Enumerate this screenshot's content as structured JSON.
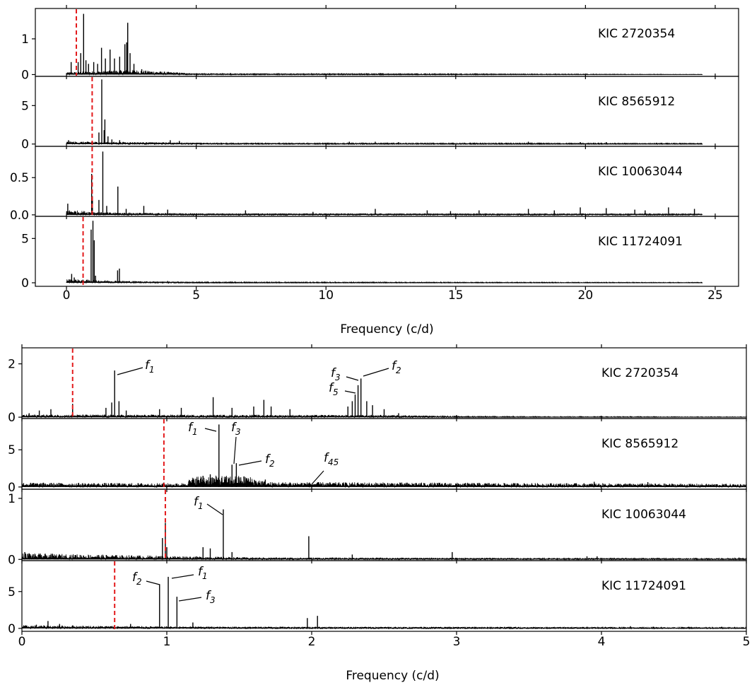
{
  "chart_data": [
    {
      "type": "line",
      "xlabel": "Frequency (c/d)",
      "xlim": [
        -1.2,
        25.9
      ],
      "x_ticks": [
        0,
        5,
        10,
        15,
        20,
        25
      ],
      "panels": [
        {
          "star": "KIC 2720354",
          "ylim": [
            -0.05,
            1.85
          ],
          "y_ticks": [
            0,
            1
          ],
          "red_line_x": 0.38,
          "peaks": [
            [
              0.18,
              0.35
            ],
            [
              0.45,
              0.35
            ],
            [
              0.55,
              0.6
            ],
            [
              0.66,
              1.7
            ],
            [
              0.75,
              0.4
            ],
            [
              0.85,
              0.3
            ],
            [
              1.05,
              0.35
            ],
            [
              1.2,
              0.3
            ],
            [
              1.35,
              0.75
            ],
            [
              1.5,
              0.45
            ],
            [
              1.68,
              0.7
            ],
            [
              1.85,
              0.45
            ],
            [
              2.05,
              0.5
            ],
            [
              2.25,
              0.85
            ],
            [
              2.32,
              0.9
            ],
            [
              2.36,
              1.45
            ],
            [
              2.45,
              0.6
            ],
            [
              2.6,
              0.3
            ],
            [
              2.9,
              0.15
            ]
          ],
          "noise_profile": [
            [
              0,
              0.04
            ],
            [
              2.5,
              0.08
            ],
            [
              5,
              0.02
            ],
            [
              24.5,
              0.004
            ]
          ]
        },
        {
          "star": "KIC 8565912",
          "ylim": [
            -0.3,
            8.8
          ],
          "y_ticks": [
            0,
            5
          ],
          "red_line_x": 0.99,
          "peaks": [
            [
              0.08,
              0.5
            ],
            [
              1.25,
              1.5
            ],
            [
              1.36,
              8.4
            ],
            [
              1.45,
              1.8
            ],
            [
              1.48,
              3.2
            ],
            [
              1.6,
              1.0
            ],
            [
              1.75,
              0.6
            ],
            [
              2.05,
              0.5
            ],
            [
              4.0,
              0.5
            ],
            [
              4.35,
              0.4
            ],
            [
              10.9,
              0.3
            ],
            [
              11.9,
              0.3
            ],
            [
              12.8,
              0.25
            ],
            [
              17.8,
              0.3
            ],
            [
              19.8,
              0.25
            ],
            [
              20.8,
              0.25
            ]
          ],
          "noise_profile": [
            [
              0,
              0.2
            ],
            [
              3,
              0.15
            ],
            [
              6,
              0.08
            ],
            [
              24.5,
              0.05
            ]
          ]
        },
        {
          "star": "KIC 10063044",
          "ylim": [
            -0.02,
            0.92
          ],
          "y_ticks": [
            0,
            0.5
          ],
          "red_line_x": 0.99,
          "peaks": [
            [
              0.05,
              0.15
            ],
            [
              0.97,
              0.55
            ],
            [
              1.0,
              0.25
            ],
            [
              1.25,
              0.2
            ],
            [
              1.4,
              0.85
            ],
            [
              1.55,
              0.12
            ],
            [
              1.98,
              0.38
            ],
            [
              2.3,
              0.08
            ],
            [
              2.98,
              0.12
            ],
            [
              3.9,
              0.07
            ],
            [
              6.9,
              0.06
            ],
            [
              9.5,
              0.04
            ],
            [
              11.9,
              0.08
            ],
            [
              13.9,
              0.06
            ],
            [
              14.8,
              0.05
            ],
            [
              15.9,
              0.06
            ],
            [
              17.8,
              0.08
            ],
            [
              18.8,
              0.06
            ],
            [
              19.8,
              0.1
            ],
            [
              20.8,
              0.09
            ],
            [
              21.9,
              0.07
            ],
            [
              22.3,
              0.06
            ],
            [
              23.2,
              0.1
            ],
            [
              24.2,
              0.08
            ]
          ],
          "noise_profile": [
            [
              0,
              0.04
            ],
            [
              1.5,
              0.02
            ],
            [
              5,
              0.012
            ],
            [
              24.5,
              0.01
            ]
          ]
        },
        {
          "star": "KIC 11724091",
          "ylim": [
            -0.4,
            7.5
          ],
          "y_ticks": [
            0,
            5
          ],
          "red_line_x": 0.64,
          "peaks": [
            [
              0.2,
              1.0
            ],
            [
              0.3,
              0.6
            ],
            [
              0.95,
              6.0
            ],
            [
              1.02,
              7.0
            ],
            [
              1.07,
              4.8
            ],
            [
              1.12,
              0.8
            ],
            [
              1.97,
              1.4
            ],
            [
              2.04,
              1.6
            ],
            [
              3.9,
              0.2
            ],
            [
              4.3,
              0.15
            ]
          ],
          "noise_profile": [
            [
              0,
              0.25
            ],
            [
              2.5,
              0.12
            ],
            [
              5,
              0.05
            ],
            [
              24.5,
              0.03
            ]
          ]
        }
      ]
    },
    {
      "type": "line",
      "xlabel": "Frequency (c/d)",
      "xlim": [
        0,
        5
      ],
      "x_ticks": [
        0,
        1,
        2,
        3,
        4,
        5
      ],
      "panels": [
        {
          "star": "KIC 2720354",
          "ylim": [
            -0.05,
            2.6
          ],
          "y_ticks": [
            0,
            2
          ],
          "red_line_x": 0.35,
          "peaks": [
            [
              0.05,
              0.15
            ],
            [
              0.12,
              0.25
            ],
            [
              0.2,
              0.3
            ],
            [
              0.35,
              0.5
            ],
            [
              0.58,
              0.35
            ],
            [
              0.62,
              0.55
            ],
            [
              0.64,
              1.75
            ],
            [
              0.67,
              0.6
            ],
            [
              0.72,
              0.25
            ],
            [
              0.95,
              0.3
            ],
            [
              1.1,
              0.35
            ],
            [
              1.32,
              0.75
            ],
            [
              1.45,
              0.35
            ],
            [
              1.6,
              0.4
            ],
            [
              1.67,
              0.65
            ],
            [
              1.72,
              0.4
            ],
            [
              1.85,
              0.3
            ],
            [
              2.25,
              0.4
            ],
            [
              2.28,
              0.6
            ],
            [
              2.3,
              0.85
            ],
            [
              2.32,
              1.2
            ],
            [
              2.34,
              1.45
            ],
            [
              2.38,
              0.6
            ],
            [
              2.42,
              0.45
            ],
            [
              2.5,
              0.3
            ],
            [
              2.6,
              0.15
            ],
            [
              3.0,
              0.08
            ]
          ],
          "noise_profile": [
            [
              0,
              0.06
            ],
            [
              2.6,
              0.05
            ],
            [
              3,
              0.02
            ],
            [
              5,
              0.01
            ]
          ]
        },
        {
          "star": "KIC 8565912",
          "ylim": [
            -0.3,
            9.2
          ],
          "y_ticks": [
            0,
            5
          ],
          "red_line_x": 0.98,
          "peaks": [
            [
              0.08,
              0.55
            ],
            [
              0.62,
              0.5
            ],
            [
              0.98,
              0.6
            ],
            [
              1.2,
              1.1
            ],
            [
              1.25,
              1.5
            ],
            [
              1.3,
              1.7
            ],
            [
              1.36,
              8.4
            ],
            [
              1.45,
              3.0
            ],
            [
              1.48,
              3.2
            ],
            [
              1.55,
              1.2
            ],
            [
              1.68,
              1.0
            ],
            [
              1.85,
              0.6
            ],
            [
              1.98,
              0.5
            ],
            [
              2.35,
              0.5
            ],
            [
              2.72,
              0.55
            ],
            [
              3.95,
              0.7
            ],
            [
              4.32,
              0.65
            ],
            [
              4.45,
              0.3
            ]
          ],
          "noise_profile": [
            [
              0,
              0.35
            ],
            [
              1.1,
              0.3
            ],
            [
              1.2,
              0.9
            ],
            [
              1.55,
              0.9
            ],
            [
              1.7,
              0.4
            ],
            [
              5,
              0.25
            ]
          ]
        },
        {
          "star": "KIC 10063044",
          "ylim": [
            -0.02,
            1.15
          ],
          "y_ticks": [
            0,
            1
          ],
          "red_line_x": 0.99,
          "peaks": [
            [
              0.02,
              0.12
            ],
            [
              0.05,
              0.1
            ],
            [
              0.97,
              0.35
            ],
            [
              0.99,
              0.6
            ],
            [
              1.0,
              0.2
            ],
            [
              1.25,
              0.2
            ],
            [
              1.3,
              0.18
            ],
            [
              1.39,
              0.82
            ],
            [
              1.45,
              0.12
            ],
            [
              1.98,
              0.38
            ],
            [
              2.28,
              0.08
            ],
            [
              2.97,
              0.12
            ],
            [
              3.9,
              0.05
            ],
            [
              3.97,
              0.05
            ],
            [
              4.95,
              0.03
            ]
          ],
          "noise_profile": [
            [
              0,
              0.06
            ],
            [
              1.6,
              0.02
            ],
            [
              5,
              0.01
            ]
          ]
        },
        {
          "star": "KIC 11724091",
          "ylim": [
            -0.4,
            9.2
          ],
          "y_ticks": [
            0,
            5
          ],
          "red_line_x": 0.64,
          "peaks": [
            [
              0.1,
              0.5
            ],
            [
              0.18,
              1.0
            ],
            [
              0.26,
              0.6
            ],
            [
              0.35,
              0.4
            ],
            [
              0.75,
              0.6
            ],
            [
              0.95,
              6.0
            ],
            [
              1.01,
              7.0
            ],
            [
              1.07,
              4.3
            ],
            [
              1.18,
              0.8
            ],
            [
              1.97,
              1.4
            ],
            [
              2.04,
              1.7
            ],
            [
              4.2,
              0.3
            ],
            [
              4.6,
              0.2
            ]
          ],
          "noise_profile": [
            [
              0,
              0.25
            ],
            [
              1.2,
              0.15
            ],
            [
              5,
              0.08
            ]
          ]
        }
      ],
      "annotations": [
        {
          "panel": 0,
          "label": "f",
          "sub": "1"
        },
        {
          "panel": 0,
          "label": "f",
          "sub": "3"
        },
        {
          "panel": 0,
          "label": "f",
          "sub": "2"
        },
        {
          "panel": 0,
          "label": "f",
          "sub": "5"
        },
        {
          "panel": 1,
          "label": "f",
          "sub": "1"
        },
        {
          "panel": 1,
          "label": "f",
          "sub": "3"
        },
        {
          "panel": 1,
          "label": "f",
          "sub": "2"
        },
        {
          "panel": 1,
          "label": "f",
          "sub": "45"
        },
        {
          "panel": 2,
          "label": "f",
          "sub": "1"
        },
        {
          "panel": 3,
          "label": "f",
          "sub": "2"
        },
        {
          "panel": 3,
          "label": "f",
          "sub": "1"
        },
        {
          "panel": 3,
          "label": "f",
          "sub": "3"
        }
      ]
    }
  ]
}
